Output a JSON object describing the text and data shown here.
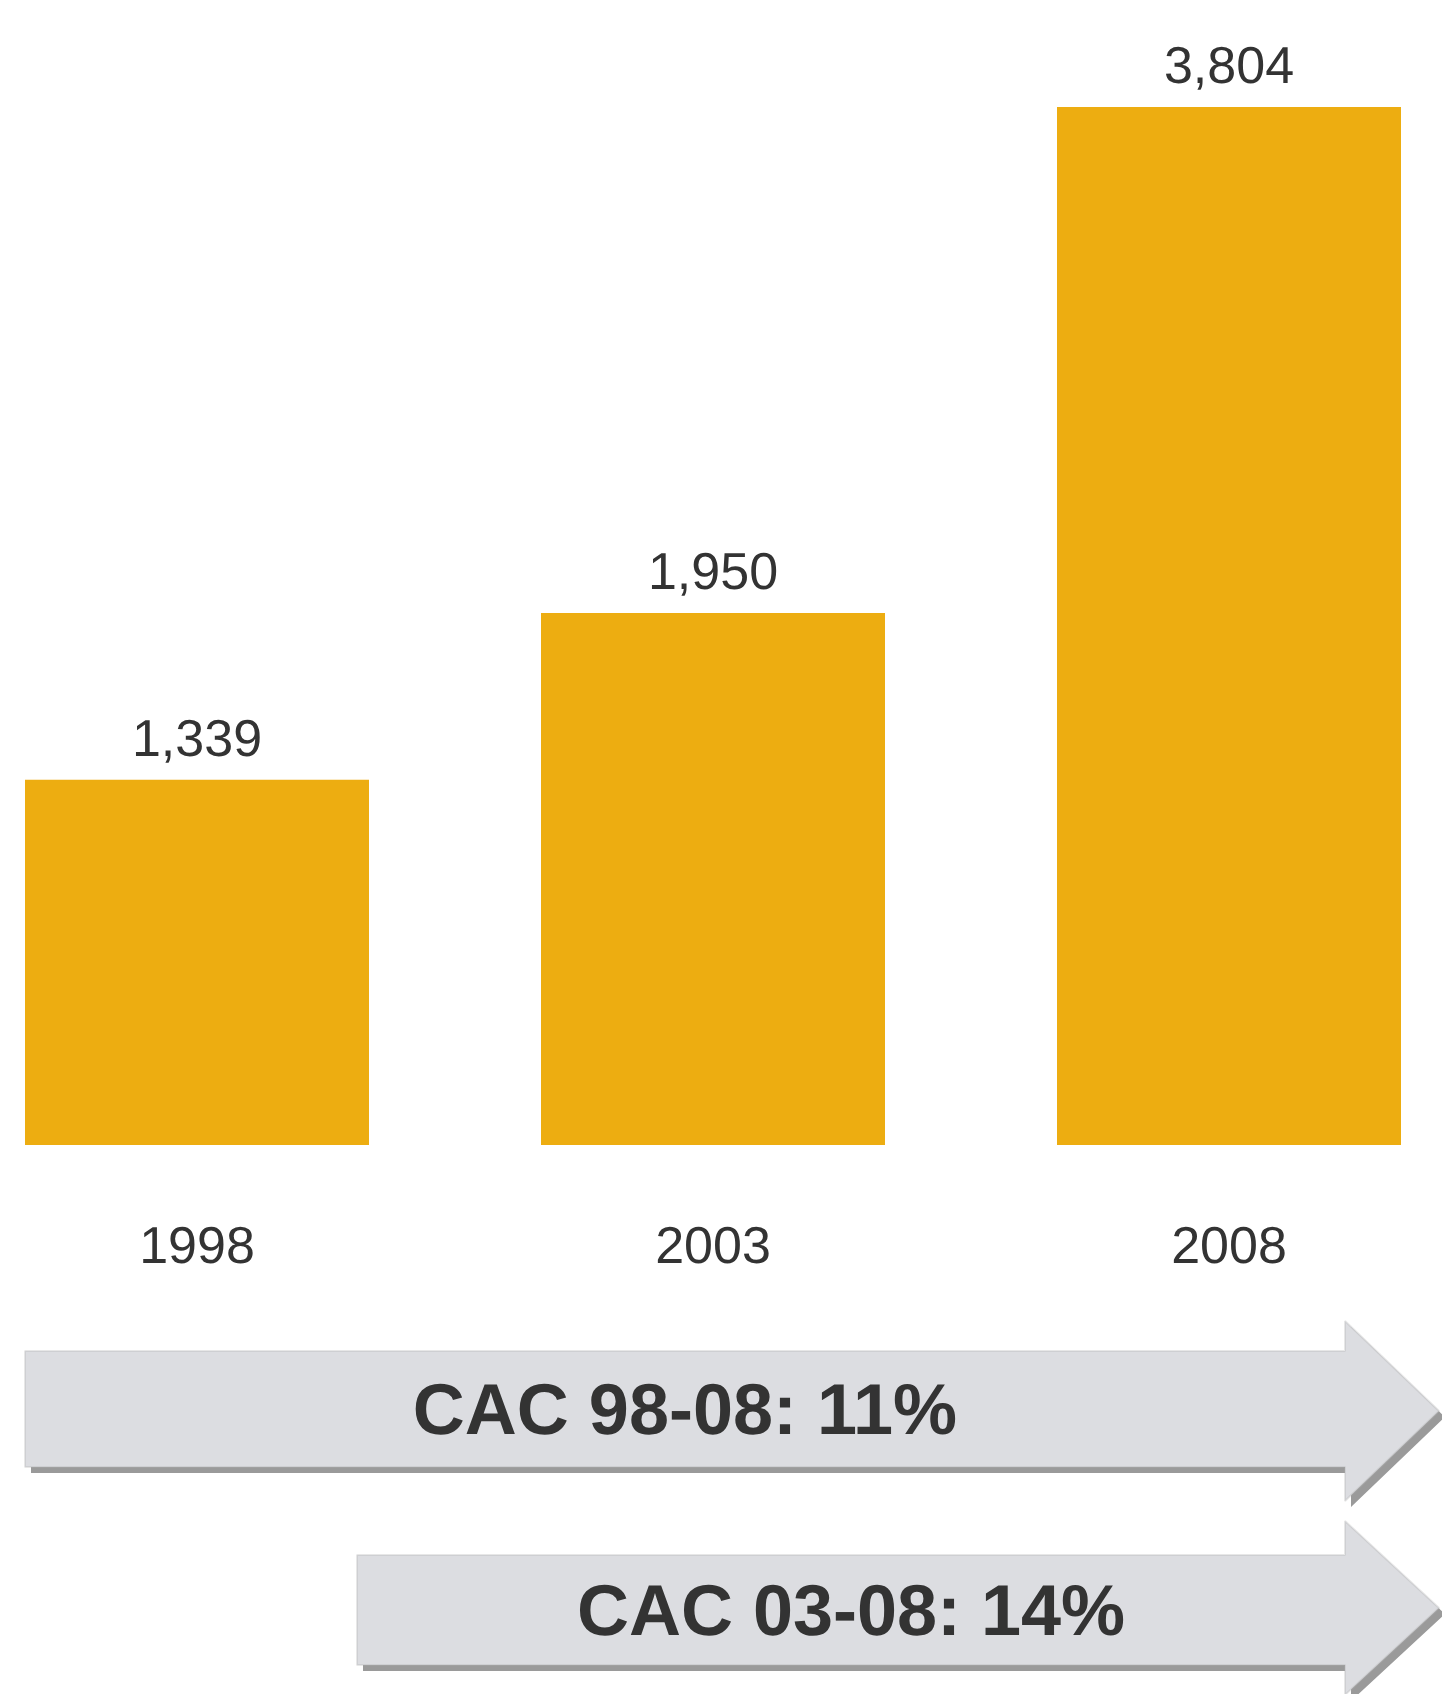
{
  "chart_data": {
    "type": "bar",
    "categories": [
      "1998",
      "2003",
      "2008"
    ],
    "values": [
      1339,
      1950,
      3804
    ],
    "color": "#edad11",
    "value_labels": [
      "1,339",
      "1,950",
      "3,804"
    ],
    "annotations": [
      "CAC 98-08: 11%",
      "CAC 03-08: 14%"
    ]
  }
}
